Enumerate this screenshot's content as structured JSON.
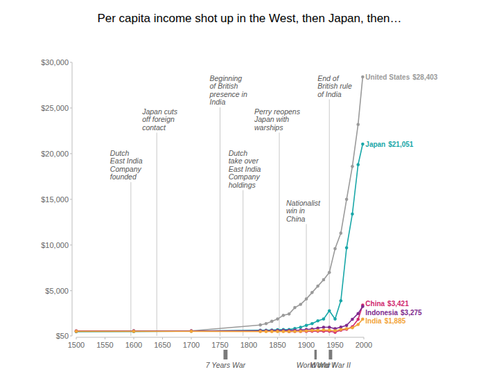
{
  "chart_data": {
    "type": "line",
    "title": "Per capita income shot up in the West, then Japan, then…",
    "x": [
      1500,
      1600,
      1700,
      1820,
      1830,
      1840,
      1850,
      1860,
      1870,
      1880,
      1890,
      1900,
      1910,
      1920,
      1930,
      1940,
      1950,
      1960,
      1970,
      1980,
      1990,
      1998
    ],
    "series": [
      {
        "name": "United States",
        "color": "#9a9a9a",
        "marker": "circle",
        "values": [
          600,
          600,
          600,
          1250,
          1400,
          1650,
          1900,
          2300,
          2450,
          3150,
          3500,
          4100,
          4800,
          5500,
          6200,
          7000,
          9600,
          11300,
          15000,
          18600,
          23200,
          28403
        ],
        "value_labels": [
          null,
          null,
          null,
          null,
          null,
          null,
          null,
          null,
          null,
          null,
          null,
          null,
          null,
          null,
          null,
          null,
          null,
          null,
          null,
          null,
          null,
          "$28,403"
        ]
      },
      {
        "name": "Japan",
        "color": "#19a7a8",
        "marker": "circle",
        "values": [
          500,
          520,
          570,
          670,
          680,
          700,
          720,
          740,
          740,
          860,
          1000,
          1200,
          1400,
          1700,
          1900,
          2800,
          1900,
          3900,
          9700,
          13400,
          18800,
          21051
        ],
        "value_labels": [
          null,
          null,
          null,
          null,
          null,
          null,
          null,
          null,
          null,
          null,
          null,
          null,
          null,
          null,
          null,
          null,
          null,
          null,
          null,
          null,
          null,
          "$21,051"
        ]
      },
      {
        "name": "China",
        "color": "#d0286e",
        "marker": "circle",
        "values": [
          600,
          600,
          600,
          600,
          600,
          600,
          600,
          600,
          530,
          540,
          550,
          550,
          560,
          570,
          570,
          560,
          450,
          670,
          780,
          1060,
          1870,
          3421
        ],
        "value_labels": [
          null,
          null,
          null,
          null,
          null,
          null,
          null,
          null,
          null,
          null,
          null,
          null,
          null,
          null,
          null,
          null,
          null,
          null,
          null,
          null,
          null,
          "$3,421"
        ]
      },
      {
        "name": "Indonesia",
        "color": "#7e2a8e",
        "marker": "circle",
        "values": [
          565,
          600,
          600,
          610,
          620,
          630,
          640,
          650,
          650,
          680,
          700,
          750,
          800,
          900,
          1000,
          1000,
          840,
          1020,
          1200,
          1870,
          2500,
          3275
        ],
        "value_labels": [
          null,
          null,
          null,
          null,
          null,
          null,
          null,
          null,
          null,
          null,
          null,
          null,
          null,
          null,
          null,
          null,
          null,
          null,
          null,
          null,
          null,
          "$3,275"
        ]
      },
      {
        "name": "India",
        "color": "#f2a43a",
        "marker": "circle",
        "values": [
          550,
          550,
          550,
          530,
          530,
          530,
          530,
          530,
          530,
          540,
          550,
          600,
          650,
          650,
          700,
          680,
          620,
          750,
          850,
          940,
          1300,
          1885
        ],
        "value_labels": [
          null,
          null,
          null,
          null,
          null,
          null,
          null,
          null,
          null,
          null,
          null,
          null,
          null,
          null,
          null,
          null,
          null,
          null,
          null,
          null,
          null,
          "$1,885"
        ]
      }
    ],
    "xlim": [
      1500,
      2000
    ],
    "xticks": [
      1500,
      1550,
      1600,
      1650,
      1700,
      1750,
      1800,
      1850,
      1900,
      1950,
      2000
    ],
    "ylim": [
      50,
      30000
    ],
    "yticks": [
      {
        "value": 50,
        "label": "$50"
      },
      {
        "value": 5000,
        "label": "$5,000"
      },
      {
        "value": 10000,
        "label": "$10,000"
      },
      {
        "value": 15000,
        "label": "$15,000"
      },
      {
        "value": 20000,
        "label": "$20,000"
      },
      {
        "value": 25000,
        "label": "$25,000"
      },
      {
        "value": 30000,
        "label": "$30,000"
      }
    ],
    "grid": false,
    "annotations": [
      {
        "x": 1595,
        "text": [
          "Dutch",
          "East India",
          "Company",
          "founded"
        ]
      },
      {
        "x": 1640,
        "text": [
          "Japan cuts",
          "off foreign",
          "contact"
        ]
      },
      {
        "x": 1750,
        "text": [
          "Beginning",
          "of British",
          "presence in",
          "India"
        ]
      },
      {
        "x": 1790,
        "text": [
          "Dutch",
          "take over",
          "East India",
          "Company",
          "holdings"
        ]
      },
      {
        "x": 1853,
        "text": [
          "Perry reopens",
          "Japan with",
          "warships"
        ]
      },
      {
        "x": 1900,
        "text": [
          "Nationalist",
          "win in",
          "China"
        ]
      },
      {
        "x": 1940,
        "text": [
          "End of",
          "British rule",
          "of India"
        ]
      }
    ],
    "periods": [
      {
        "label": "7 Years War",
        "start": 1756,
        "end": 1763
      },
      {
        "label": "World War I",
        "start": 1914,
        "end": 1918
      },
      {
        "label": "World War II",
        "start": 1939,
        "end": 1945
      }
    ]
  }
}
